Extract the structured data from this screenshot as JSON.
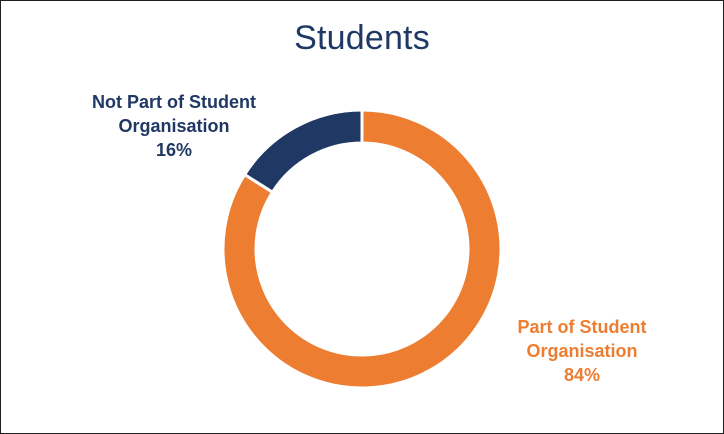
{
  "chart_data": {
    "type": "pie",
    "title": "Students",
    "donut": true,
    "slices": [
      {
        "label_lines": [
          "Part of Student",
          "Organisation"
        ],
        "percent_text": "84%",
        "value": 84,
        "color": "#ed7d31"
      },
      {
        "label_lines": [
          "Not Part of Student",
          "Organisation"
        ],
        "percent_text": "16%",
        "value": 16,
        "color": "#1f3864"
      }
    ]
  }
}
